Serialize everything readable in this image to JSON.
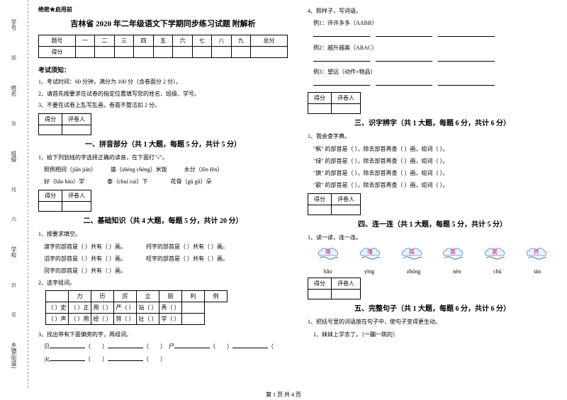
{
  "margin": {
    "items": [
      "学号",
      "姓名",
      "班级",
      "学校",
      "乡镇(街道)"
    ],
    "subs": [
      "题",
      "答",
      "内",
      "线",
      "封",
      "密"
    ]
  },
  "header": {
    "secret": "绝密★启用前",
    "title": "吉林省 2020 年二年级语文下学期同步练习试题 附解析"
  },
  "scoreTable": {
    "row1": [
      "题号",
      "一",
      "二",
      "三",
      "四",
      "五",
      "六",
      "七",
      "八",
      "九",
      "总分"
    ],
    "row2": [
      "得分",
      "",
      "",
      "",
      "",
      "",
      "",
      "",
      "",
      "",
      ""
    ]
  },
  "notice": {
    "head": "考试须知：",
    "l1": "1、考试时间：60 分钟，满分为 100 分（含卷面分 2 分）。",
    "l2": "2、请首先按要求在试卷的指定位置填写您的姓名、班级、学号。",
    "l3": "3、不要在试卷上乱写乱画，卷面不整洁扣 2 分。"
  },
  "boxHead": {
    "c1": "得分",
    "c2": "评卷人"
  },
  "s1": {
    "title": "一、拼音部分（共 1 大题，每题 5 分，共计 5 分）",
    "q1": "1、给下列划线的字选择正确的读音，在下面打\"√\"。",
    "l1": "照例相间（jiān  jiàn）",
    "l2": "盛（shèng chèng）米饭",
    "l3": "水分（fēn  fèn）",
    "l4": "好（hǎo  hào）学",
    "l5": "泰（chuí  cuí）下",
    "l6": "花骨（gū  gǔ）朵"
  },
  "s2": {
    "title": "二、基础知识（共 4 大题，每题 5 分，共计 20 分）",
    "q1": "1、按要求填空。",
    "l1": "渡字的部首是（     ）共有（     ）画。",
    "l2": "捋字的部首是（     ）共有（     ）画。",
    "l3": "滔字的部首是（     ）共有（     ）画。",
    "l4": "旺字的部首是（     ）共有（     ）画。",
    "l5": "冈字的部首是（     ）共有（     ）画。",
    "q2": "2、选字组词。",
    "row1": [
      "",
      "力",
      "历",
      "厉",
      "立",
      "丽",
      "利",
      "例"
    ],
    "row2": [
      "（   ）史",
      "（   ）正",
      "用（   ）",
      "严（   ）",
      "站（   ）",
      "秀（   ）",
      ""
    ],
    "row3": [
      "（   ）声",
      "（   ）用",
      "经（   ）",
      "努（   ）",
      "壮（   ）",
      "学（   ）",
      ""
    ],
    "q3": "3、找出带有下面偏旁的字，再组词。",
    "l6": "贝",
    "l7": "尸",
    "l8": "火"
  },
  "right": {
    "q4": "4、照样子，写词语。",
    "e1": "例1：许许多多（AABB）",
    "e2": "例2：越升越高（ABAC）",
    "e3": "例3：望远（动作+物品）"
  },
  "s3": {
    "title": "三、识字辨字（共 1 大题，每题 6 分，共计 6 分）",
    "q1": "1、我会查字典。",
    "l1": "\"枫\" 的部首是（        ），除去部首再查（       ）画，组词（        ）。",
    "l2": "\"绿\" 的部首是（        ），除去部首再查（       ）画，组词（        ）。",
    "l3": "\"旗\" 的部首是（        ），除去部首再查（       ）画，组词（        ）。",
    "l4": "\"歌\" 的部首是（        ），除去部首再查（       ）画，组词（        ）。"
  },
  "s4": {
    "title": "四、连一连（共 1 大题，每题 5 分，共计 5 分）",
    "q1": "1、读一读，连一连。",
    "chars": [
      "嘶",
      "嗤",
      "探",
      "索",
      "窝",
      "终"
    ],
    "pinyin": [
      "hǎo",
      "yīng",
      "zhōng",
      "nèn",
      "chù",
      "tàn"
    ]
  },
  "s5": {
    "title": "五、完整句子（共 1 大题，每题 6 分，共计 6 分）",
    "q1": "1、把括号里的词语放在句子中，使句子变得更生动。",
    "l1": "1、妹妹上学去了。（一蹦一跳的）"
  },
  "footer": "第 1 页 共 4 页",
  "colors": {
    "cloudStroke": "#5b8dd6",
    "cloudFill": "#eaf2fb",
    "wave": "#3b6fb3",
    "text": "#d14"
  }
}
